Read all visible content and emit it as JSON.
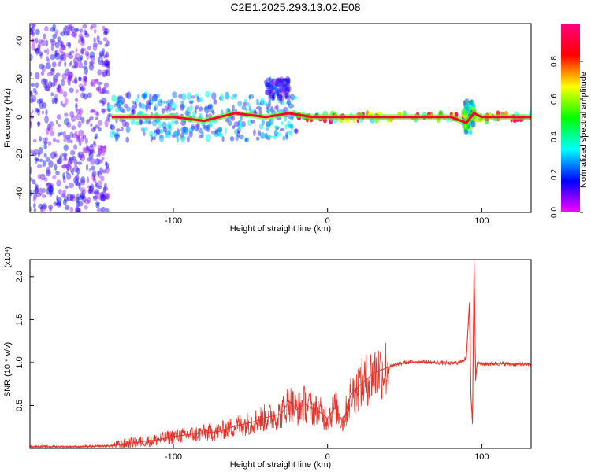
{
  "figure_title": "C2E1.2025.293.13.02.E08",
  "colors": {
    "snr_line": "#e8332b",
    "axis": "#000000",
    "background": "#ffffff"
  },
  "chart_data": [
    {
      "type": "heatmap",
      "name": "spectrogram",
      "title": "C2E1.2025.293.13.02.E08",
      "xlabel": "Height of straight line (km)",
      "ylabel": "Frequency (Hz)",
      "xlim": [
        -193,
        132
      ],
      "ylim": [
        -50,
        49
      ],
      "xticks": [
        -100,
        0,
        100
      ],
      "xtick_labels": [
        "-100",
        "0",
        "100"
      ],
      "yticks": [
        -40,
        -20,
        0,
        20,
        40
      ],
      "ytick_labels": [
        "-40",
        "-20",
        "0",
        "20",
        "40"
      ],
      "colorbar": {
        "label": "Normalized spectral amplitude",
        "range": [
          0,
          1
        ],
        "ticks": [
          0.0,
          0.2,
          0.4,
          0.6,
          0.8
        ],
        "tick_labels": [
          "0.0",
          "0.2",
          "0.4",
          "0.6",
          "0.8"
        ],
        "colormap": [
          "#ff00ff",
          "#0000ff",
          "#00ffff",
          "#00ff00",
          "#ffff00",
          "#ff0000",
          "#ff0080"
        ]
      },
      "regions": [
        {
          "x_range": [
            -193,
            -142
          ],
          "f_range": [
            -50,
            49
          ],
          "amplitude": 0.15,
          "note": "scattered broadband noise"
        },
        {
          "x_range": [
            -142,
            -20
          ],
          "f_range": [
            -12,
            12
          ],
          "amplitude": 0.3,
          "note": "clustered noise band"
        },
        {
          "x_range": [
            -40,
            -25
          ],
          "f_range": [
            10,
            20
          ],
          "amplitude": 0.2
        },
        {
          "x_range": [
            -20,
            132
          ],
          "f_range": [
            -2,
            2
          ],
          "amplitude": 0.85,
          "note": "strong line near 0 Hz"
        },
        {
          "x_range": [
            88,
            95
          ],
          "f_range": [
            -8,
            8
          ],
          "amplitude": 0.5,
          "note": "disturbance near 90 km"
        }
      ],
      "ridge_line": {
        "x": [
          -140,
          -100,
          -80,
          -60,
          -40,
          -25,
          -10,
          0,
          20,
          50,
          80,
          90,
          95,
          100,
          132
        ],
        "f": [
          0,
          0,
          -2,
          2,
          0,
          2,
          0,
          0,
          0,
          0,
          0,
          -3,
          2,
          0,
          0
        ]
      }
    },
    {
      "type": "line",
      "name": "snr",
      "xlabel": "Height of straight line (km)",
      "ylabel": "SNR (10 * v/v)",
      "y_scale_note": "(x10⁴)",
      "xlim": [
        -193,
        132
      ],
      "ylim": [
        0,
        2.2
      ],
      "xticks": [
        -100,
        0,
        100
      ],
      "xtick_labels": [
        "-100",
        "0",
        "100"
      ],
      "yticks": [
        0.5,
        1.0,
        1.5,
        2.0
      ],
      "ytick_labels": [
        "0.5",
        "1.0",
        "1.5",
        "2.0"
      ],
      "series": [
        {
          "name": "SNR",
          "x": [
            -193,
            -160,
            -140,
            -130,
            -120,
            -110,
            -100,
            -90,
            -80,
            -70,
            -60,
            -50,
            -40,
            -30,
            -25,
            -20,
            -15,
            -10,
            -5,
            0,
            5,
            10,
            15,
            20,
            30,
            40,
            50,
            60,
            70,
            80,
            85,
            90,
            92,
            93,
            94,
            95,
            96,
            97,
            100,
            110,
            120,
            132
          ],
          "y": [
            0.02,
            0.02,
            0.03,
            0.06,
            0.08,
            0.1,
            0.14,
            0.16,
            0.18,
            0.2,
            0.26,
            0.3,
            0.36,
            0.4,
            0.55,
            0.45,
            0.52,
            0.46,
            0.42,
            0.35,
            0.48,
            0.3,
            0.62,
            0.72,
            0.88,
            0.95,
            1.0,
            1.01,
            1.0,
            0.99,
            1.0,
            1.05,
            1.7,
            0.6,
            0.3,
            2.2,
            0.8,
            1.0,
            0.98,
            0.99,
            0.98,
            0.98
          ],
          "color": "#e8332b"
        }
      ]
    }
  ]
}
